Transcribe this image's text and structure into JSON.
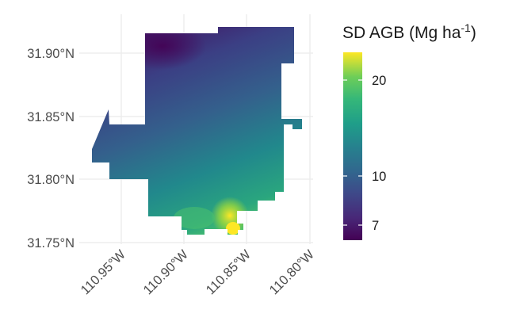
{
  "map": {
    "latitude_labels": [
      "31.90°N",
      "31.85°N",
      "31.80°N",
      "31.75°N"
    ],
    "longitude_labels": [
      "110.95°W",
      "110.90°W",
      "110.85°W",
      "110.80°W"
    ],
    "latitudes": [
      31.9,
      31.85,
      31.8,
      31.75
    ],
    "longitudes": [
      -110.95,
      -110.9,
      -110.85,
      -110.8
    ],
    "extent": {
      "lon": [
        -110.975,
        -110.775
      ],
      "lat": [
        31.745,
        31.918
      ]
    },
    "grid": true,
    "colormap": "viridis",
    "region_description": "raster of standard deviation of aboveground biomass",
    "legend": {
      "title_main": "SD AGB (Mg ha",
      "title_sup": "-1",
      "title_end": ")",
      "ticks": [
        {
          "label": "20",
          "value": 20
        },
        {
          "label": "10",
          "value": 10
        },
        {
          "label": "7",
          "value": 7
        }
      ],
      "range": [
        6,
        23
      ],
      "placement": "right"
    }
  }
}
